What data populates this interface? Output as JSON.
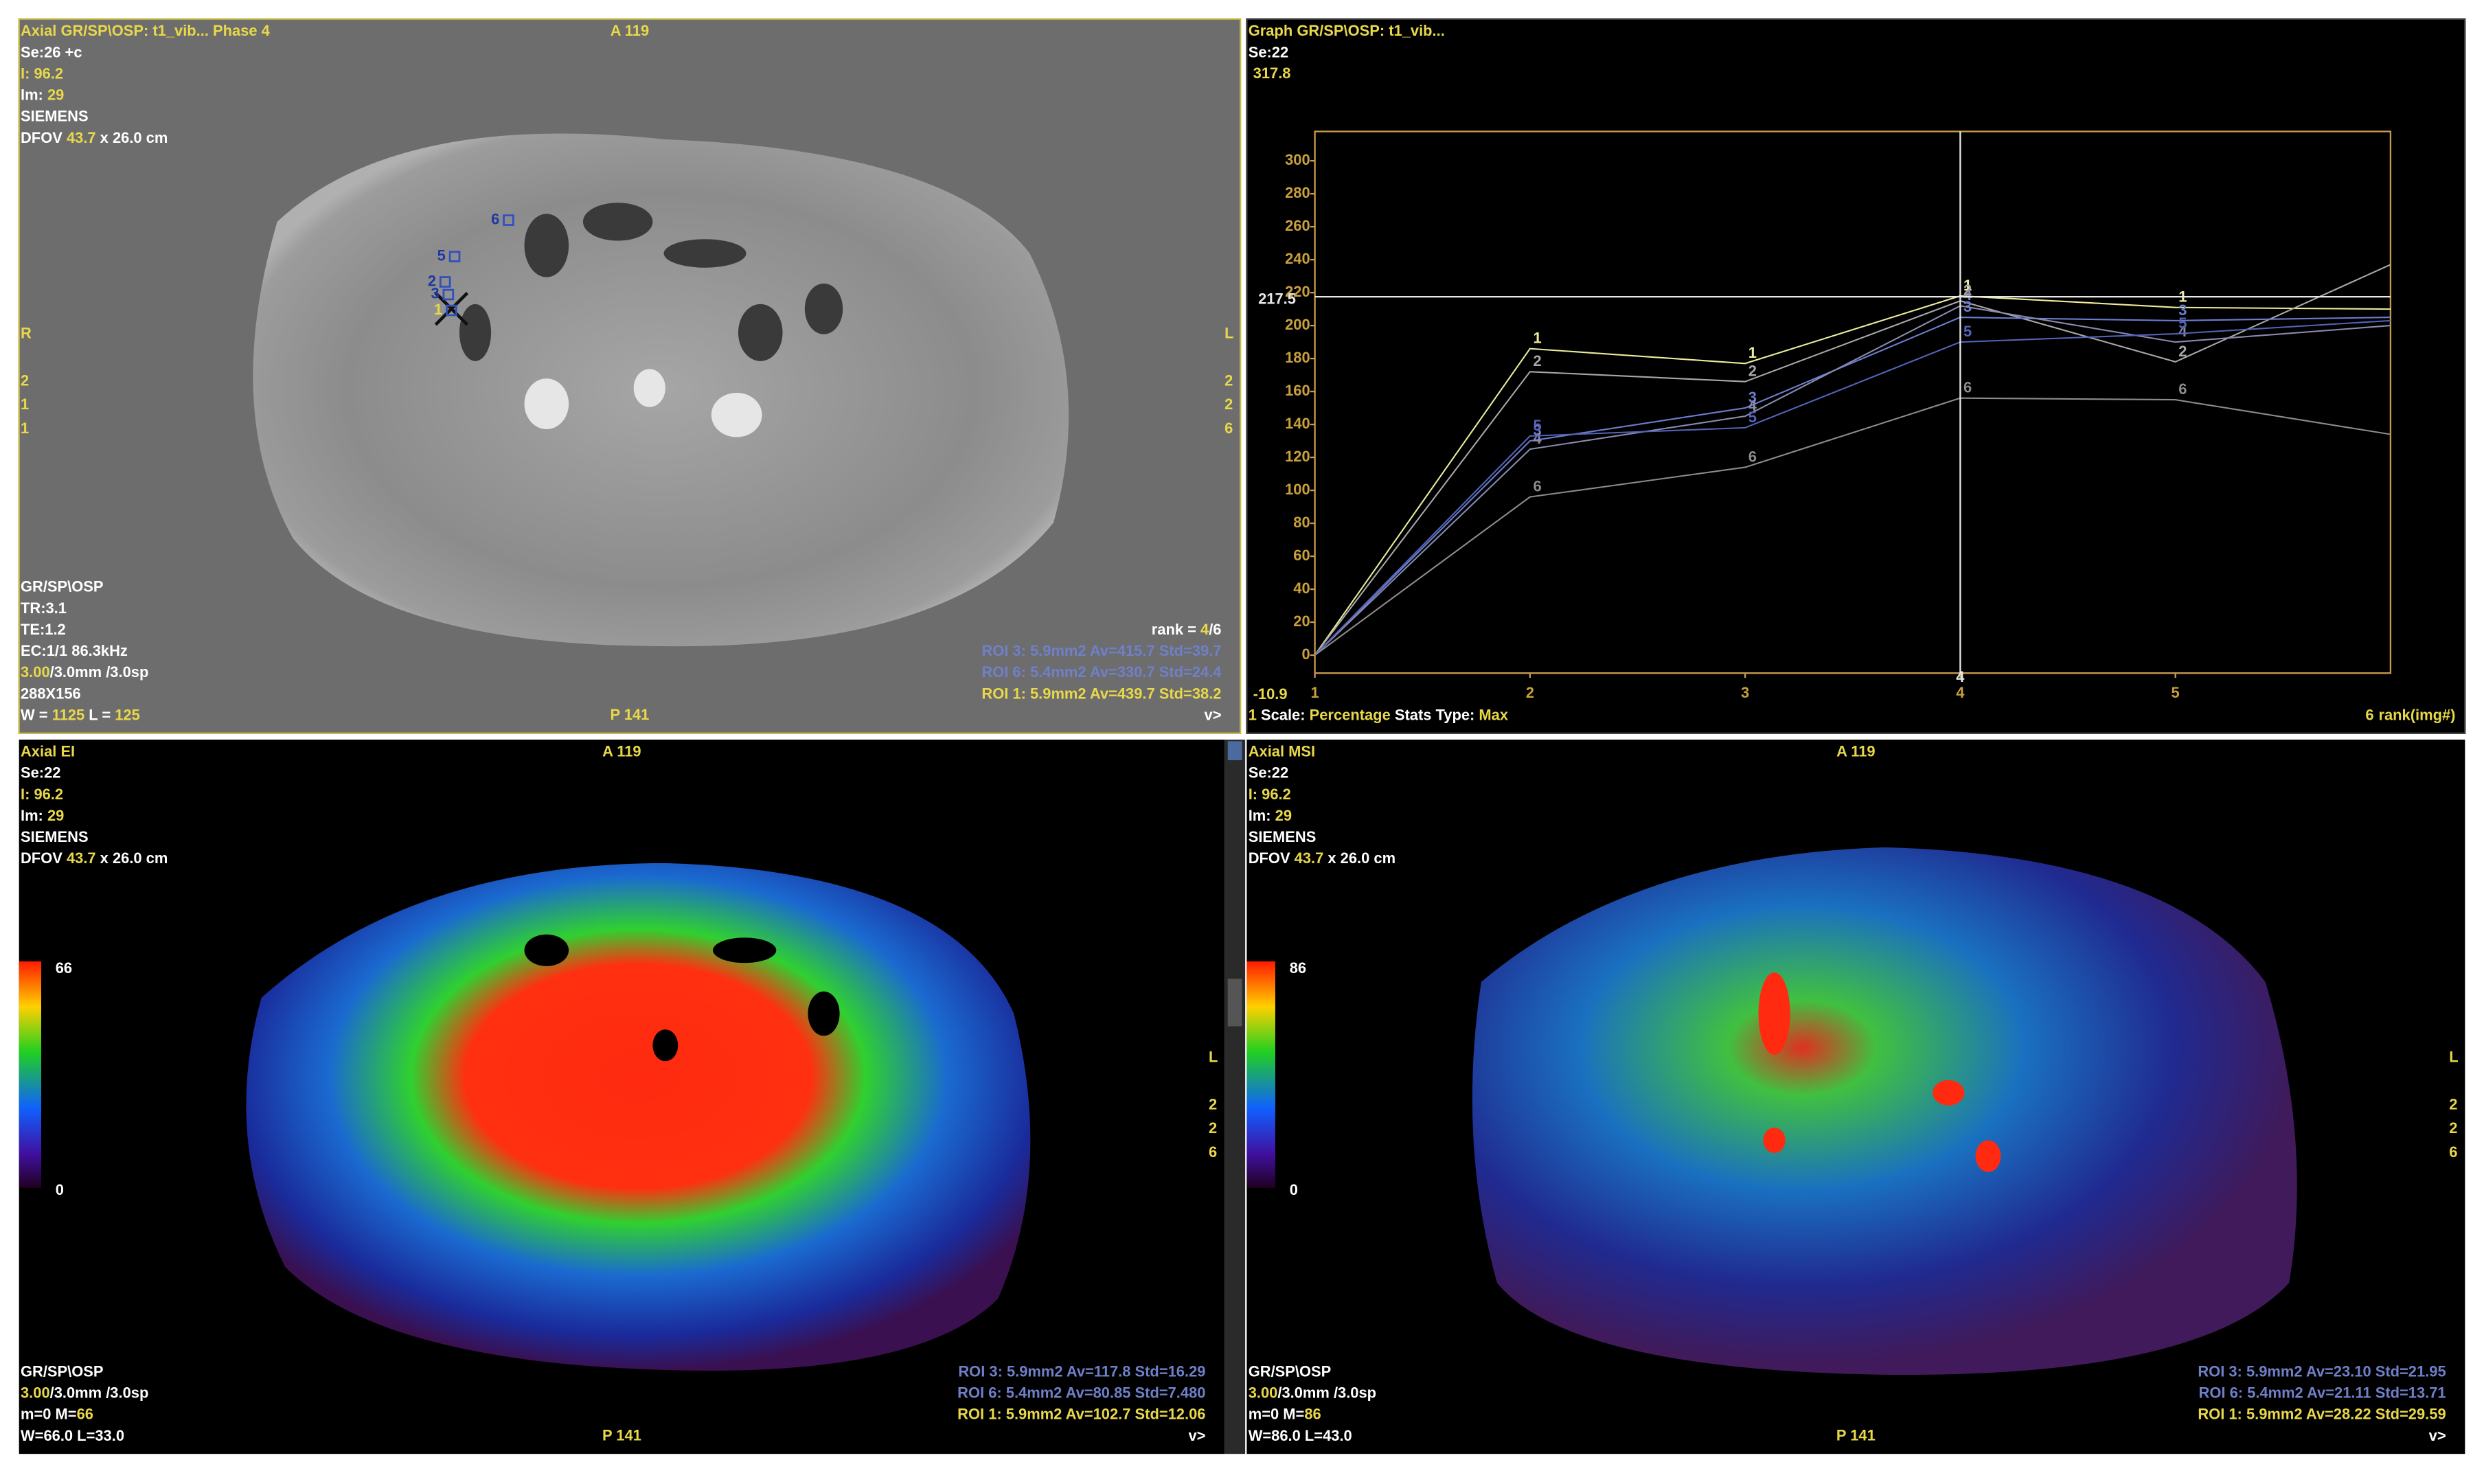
{
  "palette": {
    "w": "#ffffff",
    "y": "#e8d84a",
    "b": "#6f80c8",
    "o": "#c9a03c"
  },
  "panels": [
    {
      "top_left": [
        [
          [
            "Axial GR/SP\\OSP: t1_vib... Phase 4",
            "y"
          ]
        ],
        [
          [
            "Se:26 +c",
            "w"
          ]
        ],
        [
          [
            "I: 96.2",
            "y"
          ]
        ],
        [
          [
            "Im: ",
            "w"
          ],
          [
            "29",
            "y"
          ]
        ],
        [
          [
            "SIEMENS",
            "w"
          ]
        ],
        [
          [
            "DFOV ",
            "w"
          ],
          [
            "43.7",
            "y"
          ],
          [
            " x 26.0 cm",
            "w"
          ]
        ]
      ],
      "top_center": "A 119",
      "left_mid": [
        "R",
        "2",
        "1",
        "1"
      ],
      "right_mid": [
        "L",
        "2",
        "2",
        "6"
      ],
      "roi_markers": [
        "6",
        "5",
        "2",
        "3",
        "1"
      ],
      "bottom_left": [
        [
          [
            "GR/SP\\OSP",
            "w"
          ]
        ],
        [
          [
            "TR:3.1",
            "w"
          ]
        ],
        [
          [
            "TE:1.2",
            "w"
          ]
        ],
        [
          [
            "EC:1/1 86.3kHz",
            "w"
          ]
        ],
        [
          [
            "3.00",
            "y"
          ],
          [
            "/3.0mm /3.0sp",
            "w"
          ]
        ],
        [
          [
            "288X156",
            "w"
          ]
        ],
        [
          [
            "W = ",
            "w"
          ],
          [
            "1125",
            "y"
          ],
          [
            " L = ",
            "w"
          ],
          [
            "125",
            "y"
          ]
        ]
      ],
      "bottom_center": "P 141",
      "bottom_right": [
        [
          [
            "rank = ",
            "w"
          ],
          [
            "4",
            "y"
          ],
          [
            "/6",
            "w"
          ]
        ],
        [
          [
            "ROI 3: 5.9mm2 Av=415.7 Std=39.7",
            "b"
          ]
        ],
        [
          [
            "ROI 6: 5.4mm2 Av=330.7 Std=24.4",
            "b"
          ]
        ],
        [
          [
            "ROI 1: 5.9mm2 Av=439.7 Std=38.2",
            "y"
          ]
        ],
        [
          [
            "v>",
            "w"
          ]
        ]
      ]
    },
    {
      "top_left": [
        [
          [
            "Graph GR/SP\\OSP: t1_vib...",
            "y"
          ]
        ],
        [
          [
            "Se:22",
            "w"
          ]
        ]
      ],
      "bottom_left": [
        [
          [
            "1",
            "y"
          ],
          [
            " Scale: ",
            "w"
          ],
          [
            "Percentage",
            "y"
          ],
          [
            " Stats Type: ",
            "w"
          ],
          [
            "Max",
            "y"
          ]
        ]
      ]
    },
    {
      "top_left": [
        [
          [
            "Axial EI",
            "y"
          ]
        ],
        [
          [
            "Se:22",
            "w"
          ]
        ],
        [
          [
            "I: 96.2",
            "y"
          ]
        ],
        [
          [
            "Im: ",
            "w"
          ],
          [
            "29",
            "y"
          ]
        ],
        [
          [
            "SIEMENS",
            "w"
          ]
        ],
        [
          [
            "DFOV ",
            "w"
          ],
          [
            "43.7",
            "y"
          ],
          [
            " x 26.0 cm",
            "w"
          ]
        ]
      ],
      "top_center": "A 119",
      "right_mid": [
        "L",
        "2",
        "2",
        "6"
      ],
      "colorbar": {
        "max": "66",
        "min": "0"
      },
      "bottom_left": [
        [
          [
            "GR/SP\\OSP",
            "w"
          ]
        ],
        [
          [
            "3.00",
            "y"
          ],
          [
            "/3.0mm /3.0sp",
            "w"
          ]
        ],
        [
          [
            "m=0 M=",
            "w"
          ],
          [
            "66",
            "y"
          ]
        ],
        [
          [
            "W=66.0 L=33.0",
            "w"
          ]
        ]
      ],
      "bottom_center": "P 141",
      "bottom_right": [
        [
          [
            "ROI 3: 5.9mm2 Av=117.8  Std=16.29",
            "b"
          ]
        ],
        [
          [
            "ROI 6: 5.4mm2 Av=80.85  Std=7.480",
            "b"
          ]
        ],
        [
          [
            "ROI 1: 5.9mm2 Av=102.7  Std=12.06",
            "y"
          ]
        ],
        [
          [
            "v>",
            "w"
          ]
        ]
      ]
    },
    {
      "top_left": [
        [
          [
            "Axial MSI",
            "y"
          ]
        ],
        [
          [
            "Se:22",
            "w"
          ]
        ],
        [
          [
            "I: 96.2",
            "y"
          ]
        ],
        [
          [
            "Im: ",
            "w"
          ],
          [
            "29",
            "y"
          ]
        ],
        [
          [
            "SIEMENS",
            "w"
          ]
        ],
        [
          [
            "DFOV ",
            "w"
          ],
          [
            "43.7",
            "y"
          ],
          [
            " x 26.0 cm",
            "w"
          ]
        ]
      ],
      "top_center": "A 119",
      "right_mid": [
        "L",
        "2",
        "2",
        "6"
      ],
      "colorbar": {
        "max": "86",
        "min": "0"
      },
      "bottom_left": [
        [
          [
            "GR/SP\\OSP",
            "w"
          ]
        ],
        [
          [
            "3.00",
            "y"
          ],
          [
            "/3.0mm /3.0sp",
            "w"
          ]
        ],
        [
          [
            "m=0 M=",
            "w"
          ],
          [
            "86",
            "y"
          ]
        ],
        [
          [
            "W=86.0 L=43.0",
            "w"
          ]
        ]
      ],
      "bottom_center": "P 141",
      "bottom_right": [
        [
          [
            "ROI 3: 5.9mm2 Av=23.10  Std=21.95",
            "b"
          ]
        ],
        [
          [
            "ROI 6: 5.4mm2 Av=21.11  Std=13.71",
            "b"
          ]
        ],
        [
          [
            "ROI 1: 5.9mm2 Av=28.22  Std=29.59",
            "y"
          ]
        ],
        [
          [
            "v>",
            "w"
          ]
        ]
      ]
    }
  ],
  "chart_data": {
    "type": "line",
    "x": [
      1,
      2,
      3,
      4,
      5,
      6
    ],
    "xlim": [
      1,
      6
    ],
    "xticks": [
      1,
      2,
      3,
      4,
      5
    ],
    "x_label": "rank(img#)",
    "ylim": [
      -10.9,
      317.8
    ],
    "yticks": [
      0,
      20,
      40,
      60,
      80,
      100,
      120,
      140,
      160,
      180,
      200,
      220,
      240,
      260,
      280,
      300
    ],
    "cursor": {
      "x": 4,
      "y": 217.5
    },
    "series": [
      {
        "name": "1",
        "color": "#ecec9c",
        "values": [
          0,
          186,
          177,
          218,
          211,
          210
        ]
      },
      {
        "name": "2",
        "color": "#a8a8a8",
        "values": [
          0,
          172,
          166,
          215,
          178,
          237
        ]
      },
      {
        "name": "3",
        "color": "#6c7ed0",
        "values": [
          0,
          130,
          150,
          205,
          203,
          205
        ]
      },
      {
        "name": "4",
        "color": "#8a8aae",
        "values": [
          0,
          125,
          145,
          212,
          190,
          200
        ]
      },
      {
        "name": "5",
        "color": "#5464b8",
        "values": [
          0,
          133,
          138,
          190,
          195,
          203
        ]
      },
      {
        "name": "6",
        "color": "#8c8c8c",
        "values": [
          0,
          96,
          114,
          156,
          155,
          134
        ]
      }
    ]
  }
}
